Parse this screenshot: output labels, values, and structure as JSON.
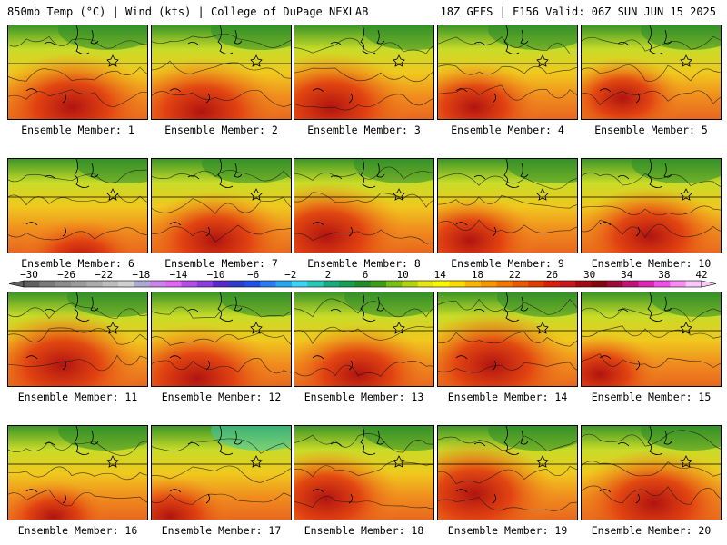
{
  "header": {
    "left": "850mb Temp (°C) | Wind (kts) | College of DuPage NEXLAB",
    "right": "18Z GEFS | F156 Valid: 06Z SUN JUN 15 2025"
  },
  "panels": [
    {
      "label": "Ensemble Member: 1"
    },
    {
      "label": "Ensemble Member: 2"
    },
    {
      "label": "Ensemble Member: 3"
    },
    {
      "label": "Ensemble Member: 4"
    },
    {
      "label": "Ensemble Member: 5"
    },
    {
      "label": "Ensemble Member: 6"
    },
    {
      "label": "Ensemble Member: 7"
    },
    {
      "label": "Ensemble Member: 8"
    },
    {
      "label": "Ensemble Member: 9"
    },
    {
      "label": "Ensemble Member: 10"
    },
    {
      "label": "Ensemble Member: 11"
    },
    {
      "label": "Ensemble Member: 12"
    },
    {
      "label": "Ensemble Member: 13"
    },
    {
      "label": "Ensemble Member: 14"
    },
    {
      "label": "Ensemble Member: 15"
    },
    {
      "label": "Ensemble Member: 16"
    },
    {
      "label": "Ensemble Member: 17"
    },
    {
      "label": "Ensemble Member: 18"
    },
    {
      "label": "Ensemble Member: 19"
    },
    {
      "label": "Ensemble Member: 20"
    }
  ],
  "colorbar": {
    "ticks": [
      "−30",
      "−26",
      "−22",
      "−18",
      "−14",
      "−10",
      "−6",
      "−2",
      "2",
      "6",
      "10",
      "14",
      "18",
      "22",
      "26",
      "30",
      "34",
      "38",
      "42"
    ],
    "colors": [
      "#606060",
      "#7a7a7a",
      "#8c8c8c",
      "#9a9a9a",
      "#ababab",
      "#bcbcbc",
      "#cfcfcf",
      "#a9a9d2",
      "#c884e8",
      "#e066f0",
      "#b44ce6",
      "#8c3cdc",
      "#5a28c8",
      "#2e3cc8",
      "#2050e6",
      "#2a7af0",
      "#2aa6f0",
      "#40d2f4",
      "#28c8b4",
      "#1aaa82",
      "#14a050",
      "#228c28",
      "#3c9e14",
      "#78be14",
      "#b4d214",
      "#e6e614",
      "#f8f800",
      "#f8dc00",
      "#f8b400",
      "#f89600",
      "#f07800",
      "#e85a00",
      "#e03c00",
      "#d81e0c",
      "#c8141e",
      "#a00a14",
      "#82060e",
      "#9c0a3c",
      "#be1478",
      "#dc28b4",
      "#f050e6",
      "#f88cf0",
      "#fac8f8"
    ]
  },
  "colors": {
    "hot": "#b01410",
    "warm": "#f08c1e",
    "mild": "#f0c81e",
    "cool": "#c8dc28",
    "cold": "#3c9628",
    "contour": "#1a1a1a"
  }
}
